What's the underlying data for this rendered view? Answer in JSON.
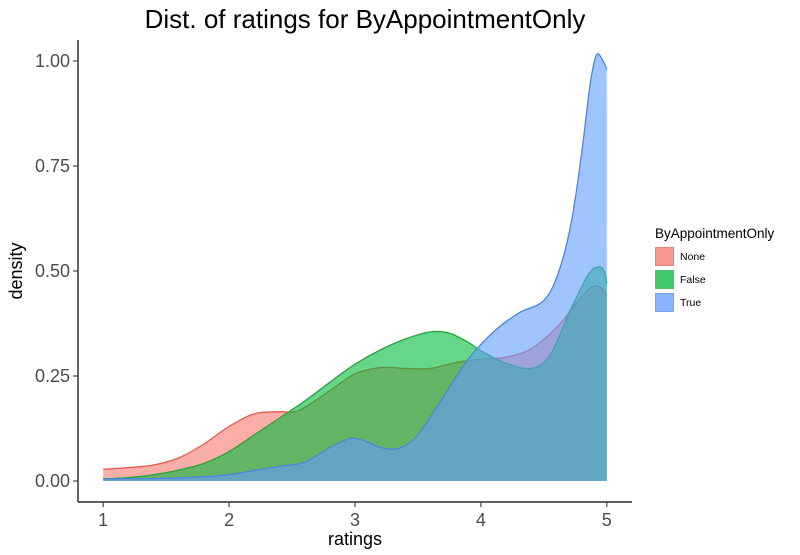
{
  "chart_data": {
    "type": "area",
    "title": "Dist. of ratings for ByAppointmentOnly",
    "xlabel": "ratings",
    "ylabel": "density",
    "xlim": [
      0.8,
      5.2
    ],
    "ylim": [
      -0.05,
      1.05
    ],
    "x_ticks": [
      "1",
      "2",
      "3",
      "4",
      "5"
    ],
    "y_ticks": [
      "0.00",
      "0.25",
      "0.50",
      "0.75",
      "1.00"
    ],
    "grid": false,
    "legend": {
      "title": "ByAppointmentOnly",
      "position": "right"
    },
    "series": [
      {
        "name": "None",
        "fill": "#f8766d",
        "stroke": "#e8594e",
        "points": [
          [
            1.0,
            0.028
          ],
          [
            1.2,
            0.032
          ],
          [
            1.4,
            0.038
          ],
          [
            1.6,
            0.055
          ],
          [
            1.8,
            0.088
          ],
          [
            2.0,
            0.13
          ],
          [
            2.2,
            0.16
          ],
          [
            2.4,
            0.165
          ],
          [
            2.5,
            0.164
          ],
          [
            2.6,
            0.175
          ],
          [
            2.8,
            0.215
          ],
          [
            3.0,
            0.255
          ],
          [
            3.2,
            0.27
          ],
          [
            3.4,
            0.268
          ],
          [
            3.6,
            0.268
          ],
          [
            3.8,
            0.282
          ],
          [
            4.0,
            0.29
          ],
          [
            4.2,
            0.295
          ],
          [
            4.4,
            0.315
          ],
          [
            4.6,
            0.365
          ],
          [
            4.75,
            0.42
          ],
          [
            4.85,
            0.455
          ],
          [
            4.92,
            0.465
          ],
          [
            4.97,
            0.455
          ],
          [
            5.0,
            0.44
          ]
        ]
      },
      {
        "name": "False",
        "fill": "#00ba38",
        "stroke": "#22a63c",
        "points": [
          [
            1.0,
            0.005
          ],
          [
            1.2,
            0.008
          ],
          [
            1.4,
            0.015
          ],
          [
            1.6,
            0.026
          ],
          [
            1.8,
            0.042
          ],
          [
            2.0,
            0.07
          ],
          [
            2.2,
            0.11
          ],
          [
            2.4,
            0.15
          ],
          [
            2.6,
            0.19
          ],
          [
            2.8,
            0.235
          ],
          [
            3.0,
            0.278
          ],
          [
            3.2,
            0.312
          ],
          [
            3.4,
            0.338
          ],
          [
            3.6,
            0.355
          ],
          [
            3.75,
            0.352
          ],
          [
            3.9,
            0.33
          ],
          [
            4.0,
            0.31
          ],
          [
            4.2,
            0.28
          ],
          [
            4.4,
            0.268
          ],
          [
            4.55,
            0.3
          ],
          [
            4.7,
            0.4
          ],
          [
            4.85,
            0.49
          ],
          [
            4.93,
            0.51
          ],
          [
            4.98,
            0.5
          ],
          [
            5.0,
            0.47
          ]
        ]
      },
      {
        "name": "True",
        "fill": "#619cff",
        "stroke": "#4a86e0",
        "points": [
          [
            1.0,
            0.005
          ],
          [
            1.4,
            0.006
          ],
          [
            1.8,
            0.01
          ],
          [
            2.0,
            0.015
          ],
          [
            2.2,
            0.025
          ],
          [
            2.4,
            0.035
          ],
          [
            2.6,
            0.045
          ],
          [
            2.8,
            0.08
          ],
          [
            2.95,
            0.1
          ],
          [
            3.05,
            0.098
          ],
          [
            3.2,
            0.08
          ],
          [
            3.35,
            0.078
          ],
          [
            3.5,
            0.11
          ],
          [
            3.7,
            0.2
          ],
          [
            3.9,
            0.29
          ],
          [
            4.1,
            0.355
          ],
          [
            4.3,
            0.4
          ],
          [
            4.5,
            0.43
          ],
          [
            4.62,
            0.5
          ],
          [
            4.72,
            0.62
          ],
          [
            4.8,
            0.78
          ],
          [
            4.87,
            0.95
          ],
          [
            4.92,
            1.015
          ],
          [
            4.97,
            1.0
          ],
          [
            5.0,
            0.98
          ]
        ]
      }
    ]
  }
}
